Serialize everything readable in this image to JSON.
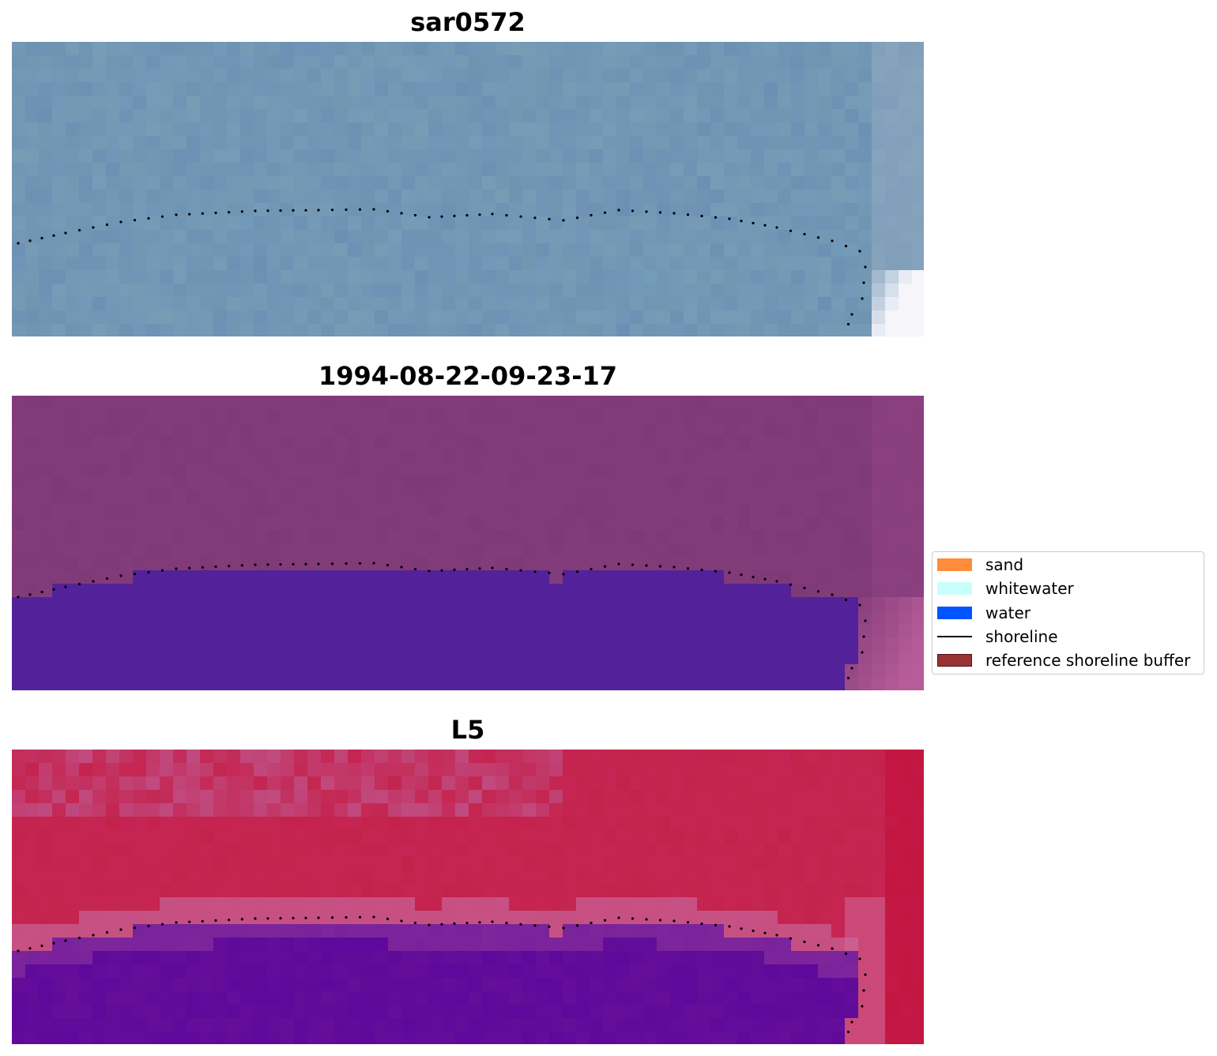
{
  "panels": [
    {
      "title": "sar0572",
      "image": "sar0572 true-colour satellite image with detected shoreline (dotted)"
    },
    {
      "title": "1994-08-22-09-23-17",
      "image": "classified image with water mask and detected shoreline"
    },
    {
      "title": "L5",
      "image": "L5 false-colour water index image with detected shoreline"
    }
  ],
  "legend": {
    "items": [
      {
        "label": "sand",
        "color": "#ff8c3a",
        "kind": "patch"
      },
      {
        "label": "whitewater",
        "color": "#c8fffb",
        "kind": "patch"
      },
      {
        "label": "water",
        "color": "#0055ff",
        "kind": "patch"
      },
      {
        "label": "shoreline",
        "color": "#000000",
        "kind": "line"
      },
      {
        "label": "reference shoreline buffer",
        "color": "#993333",
        "kind": "patch-outlined"
      }
    ]
  },
  "colors": {
    "sar_base": "#7399b8",
    "class_land": "#833c7a",
    "class_water": "#53229a",
    "index_land": "#c3234b",
    "index_water": "#650e9a"
  }
}
